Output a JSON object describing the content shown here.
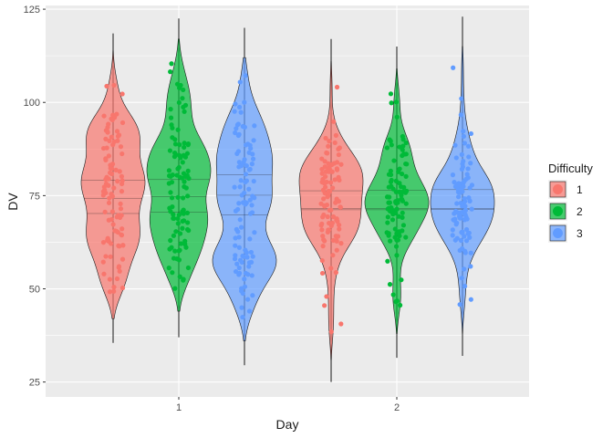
{
  "chart_data": {
    "type": "violin",
    "xlabel": "Day",
    "ylabel": "DV",
    "categories": [
      "1",
      "2"
    ],
    "yticks": [
      25,
      50,
      75,
      100,
      125
    ],
    "ylim": [
      21,
      126
    ],
    "grid": true,
    "legend": {
      "title": "Difficulty",
      "placement": "right",
      "entries": [
        "1",
        "2",
        "3"
      ]
    },
    "colors": {
      "1": "#F8766D",
      "2": "#00BA38",
      "3": "#619CFF"
    },
    "panel_background": "#EBEBEB",
    "series": [
      {
        "name": "1",
        "day": "1",
        "whisker": [
          35.5,
          118.5
        ],
        "violin_range": [
          42,
          114
        ],
        "median": 74.3,
        "quartiles": [
          70.2,
          79.1
        ],
        "points_range": [
          49.2,
          104.6
        ],
        "n": 100
      },
      {
        "name": "2",
        "day": "1",
        "whisker": [
          37,
          122.5
        ],
        "violin_range": [
          44,
          117
        ],
        "median": 74.7,
        "quartiles": [
          70.6,
          79.3
        ],
        "points_range": [
          50.1,
          110.4
        ],
        "n": 100
      },
      {
        "name": "3",
        "day": "1",
        "whisker": [
          29.5,
          120
        ],
        "violin_range": [
          36,
          112
        ],
        "median": 75.1,
        "quartiles": [
          69.8,
          80.6
        ],
        "points_range": [
          42.4,
          107.2
        ],
        "n": 100
      },
      {
        "name": "1",
        "day": "2",
        "whisker": [
          25,
          117
        ],
        "violin_range": [
          31,
          111
        ],
        "median": 71.5,
        "quartiles": [
          71.2,
          76.3
        ],
        "points_range": [
          38.5,
          104.1
        ],
        "n": 100
      },
      {
        "name": "2",
        "day": "2",
        "whisker": [
          31.5,
          115
        ],
        "violin_range": [
          38,
          109
        ],
        "median": 71.5,
        "quartiles": [
          71.2,
          76.4
        ],
        "points_range": [
          45.6,
          102.3
        ],
        "n": 100
      },
      {
        "name": "3",
        "day": "2",
        "whisker": [
          32,
          123
        ],
        "violin_range": [
          38,
          115
        ],
        "median": 71.5,
        "quartiles": [
          71.3,
          76.6
        ],
        "points_range": [
          45.8,
          109.3
        ],
        "n": 100
      }
    ]
  }
}
